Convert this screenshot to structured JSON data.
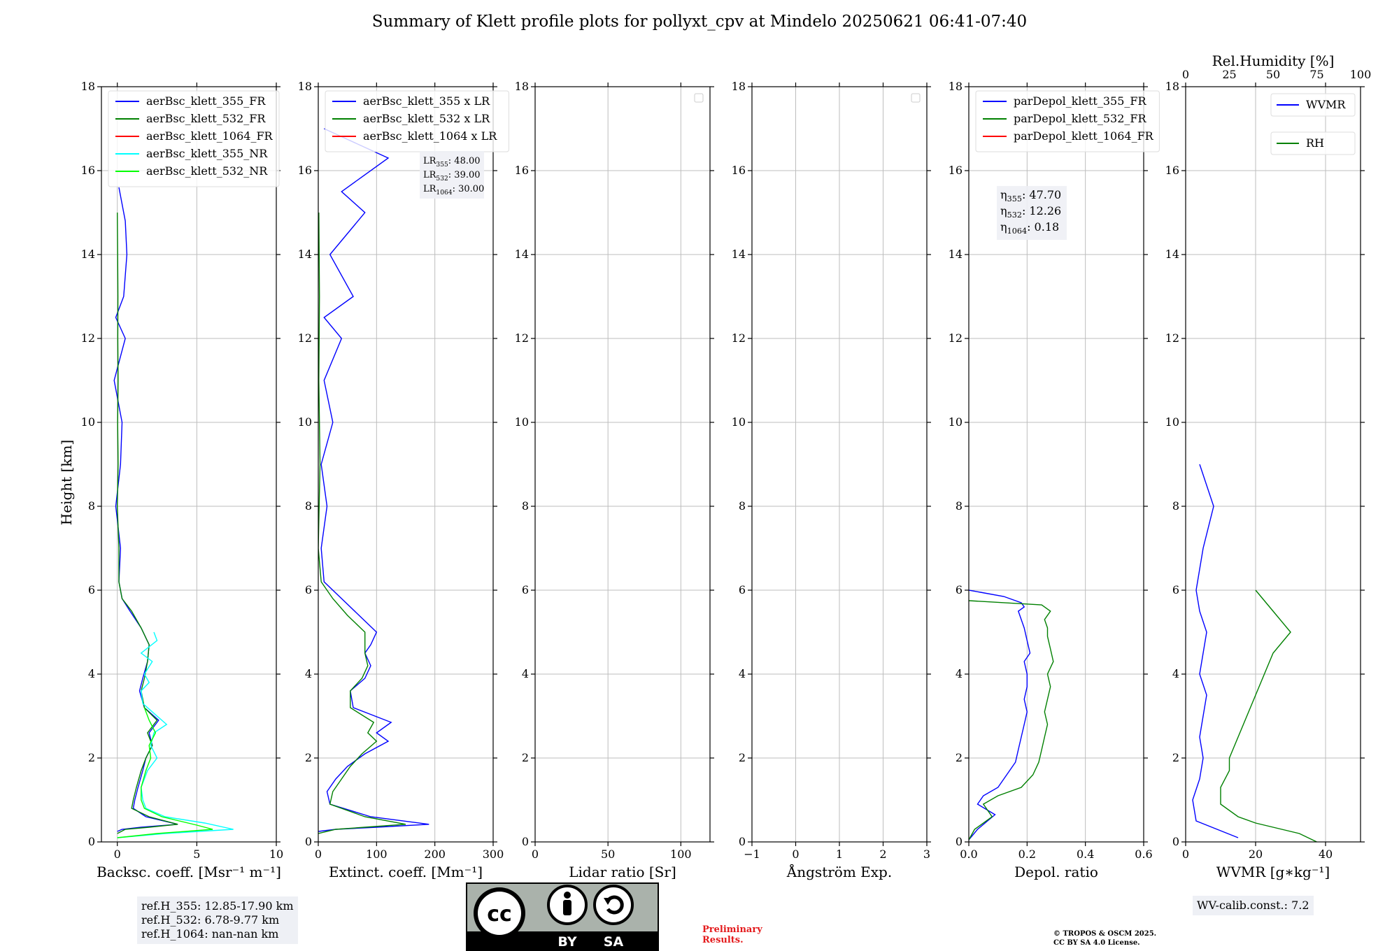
{
  "title": "Summary of Klett profile plots for pollyxt_cpv at Mindelo 20250621 06:41-07:40",
  "ylabel": "Height [km]",
  "ref_lines": [
    "ref.H_355: 12.85-17.90 km",
    "ref.H_532: 6.78-9.77 km",
    "ref.H_1064: nan-nan km"
  ],
  "wv_calib": "WV-calib.const.: 7.2",
  "preliminary": [
    "Preliminary",
    "Results."
  ],
  "copyright": [
    "© TROPOS & OSCM 2025.",
    "CC BY SA 4.0 License."
  ],
  "cc_badge": {
    "by": "BY",
    "sa": "SA"
  },
  "colors": {
    "b355": "#0000ff",
    "g532": "#008000",
    "r1064": "#ff0000",
    "c355nr": "#00ffff",
    "g532nr": "#00ff00"
  },
  "chart_data": [
    {
      "type": "line",
      "xlabel": "Backsc. coeff. [Msr$^{-1}$ m$^{-1}$]",
      "xlabel_display": "Backsc. coeff. [Msr⁻¹ m⁻¹]",
      "ylabel": "Height [km]",
      "xlim": [
        -1,
        10
      ],
      "ylim": [
        0,
        18
      ],
      "xticks": [
        0,
        5,
        10
      ],
      "yticks": [
        0,
        2,
        4,
        6,
        8,
        10,
        12,
        14,
        16,
        18
      ],
      "grid": true,
      "legend": "upper-left",
      "series": [
        {
          "name": "aerBsc_klett_355_FR",
          "color": "#0000ff",
          "x": [
            0,
            0.3,
            1.5,
            3.8,
            1.8,
            1.0,
            1.1,
            1.3,
            1.6,
            1.8,
            2.2,
            2.0,
            2.6,
            1.7,
            1.4,
            1.6,
            1.9,
            2.0,
            1.5,
            0.8,
            0.3,
            0.1,
            0.2,
            -0.1,
            0.2,
            0.3,
            -0.2,
            0.5,
            -0.1,
            0.4,
            0.6,
            0.5,
            0.1
          ],
          "y": [
            0.25,
            0.3,
            0.35,
            0.42,
            0.6,
            0.8,
            1.0,
            1.3,
            1.7,
            2.0,
            2.3,
            2.6,
            2.9,
            3.2,
            3.6,
            3.9,
            4.3,
            4.7,
            5.1,
            5.5,
            5.8,
            6.2,
            7,
            8,
            9,
            10,
            11,
            12,
            12.5,
            13,
            14,
            14.8,
            15.6
          ]
        },
        {
          "name": "aerBsc_klett_532_FR",
          "color": "#008000",
          "x": [
            0,
            0.5,
            2.0,
            3.8,
            2.0,
            0.9,
            1.0,
            1.2,
            1.5,
            1.8,
            2.2,
            1.9,
            2.5,
            1.7,
            1.5,
            1.7,
            1.9,
            2.0,
            1.5,
            0.9,
            0.3,
            0.1,
            0.1,
            0,
            0.05,
            0.02,
            0.05,
            0.03,
            0.04,
            0.02,
            0.0
          ],
          "y": [
            0.2,
            0.3,
            0.35,
            0.42,
            0.6,
            0.8,
            1.0,
            1.3,
            1.7,
            2.0,
            2.3,
            2.6,
            2.9,
            3.2,
            3.6,
            3.9,
            4.3,
            4.7,
            5.1,
            5.5,
            5.8,
            6.2,
            7,
            8,
            9,
            10,
            11,
            12,
            13,
            14,
            15
          ]
        },
        {
          "name": "aerBsc_klett_1064_FR",
          "color": "#ff0000",
          "x": [],
          "y": []
        },
        {
          "name": "aerBsc_klett_355_NR",
          "color": "#00ffff",
          "x": [
            0,
            3.0,
            7.3,
            5.5,
            3.0,
            1.8,
            1.6,
            1.5,
            1.9,
            2.5,
            2.1,
            2.3,
            3.1,
            2.5,
            1.6,
            1.5,
            2.0,
            1.7,
            2.2,
            1.5,
            2.5,
            2.3
          ],
          "y": [
            0.1,
            0.2,
            0.3,
            0.45,
            0.6,
            0.8,
            1.0,
            1.3,
            1.7,
            2.0,
            2.3,
            2.6,
            2.8,
            3.0,
            3.3,
            3.6,
            3.8,
            4.0,
            4.3,
            4.5,
            4.8,
            5.0
          ]
        },
        {
          "name": "aerBsc_klett_532_NR",
          "color": "#00ff00",
          "x": [
            0,
            2.5,
            6.0,
            5.0,
            2.8,
            1.7,
            1.5,
            1.5,
            1.8,
            2.1,
            2.0,
            2.4,
            2.0,
            1.7
          ],
          "y": [
            0.1,
            0.2,
            0.3,
            0.4,
            0.6,
            0.8,
            1.0,
            1.3,
            1.7,
            2.0,
            2.3,
            2.6,
            2.9,
            3.2
          ]
        }
      ]
    },
    {
      "type": "line",
      "xlabel": "Extinct. coeff. [Mm$^{-1}$]",
      "xlabel_display": "Extinct. coeff. [Mm⁻¹]",
      "xlim": [
        0,
        300
      ],
      "ylim": [
        0,
        18
      ],
      "xticks": [
        0,
        100,
        200,
        300
      ],
      "yticks": [
        0,
        2,
        4,
        6,
        8,
        10,
        12,
        14,
        16,
        18
      ],
      "grid": true,
      "legend": "upper-left",
      "annotation": [
        "LR355: 48.00",
        "LR532: 39.00",
        "LR1064: 30.00"
      ],
      "series": [
        {
          "name": "aerBsc_klett_355 x LR",
          "color": "#0000ff",
          "x": [
            0,
            30,
            100,
            190,
            90,
            20,
            15,
            30,
            50,
            80,
            120,
            100,
            125,
            60,
            55,
            80,
            90,
            80,
            90,
            100,
            70,
            40,
            10,
            5,
            15,
            5,
            25,
            10,
            40,
            10,
            60,
            20,
            80,
            40,
            120,
            10
          ],
          "y": [
            0.25,
            0.3,
            0.35,
            0.42,
            0.6,
            0.9,
            1.2,
            1.5,
            1.8,
            2.1,
            2.4,
            2.6,
            2.85,
            3.2,
            3.6,
            3.9,
            4.2,
            4.5,
            4.7,
            5.0,
            5.4,
            5.8,
            6.2,
            7,
            8,
            9,
            10,
            11,
            12,
            12.5,
            13,
            14,
            15,
            15.5,
            16.3,
            17
          ]
        },
        {
          "name": "aerBsc_klett_532 x LR",
          "color": "#008000",
          "x": [
            0,
            30,
            80,
            150,
            80,
            20,
            25,
            40,
            55,
            75,
            100,
            85,
            95,
            55,
            55,
            75,
            85,
            80,
            80,
            80,
            50,
            25,
            5,
            0,
            3,
            1,
            2,
            1
          ],
          "y": [
            0.2,
            0.3,
            0.35,
            0.42,
            0.6,
            0.9,
            1.2,
            1.5,
            1.8,
            2.1,
            2.4,
            2.6,
            2.85,
            3.2,
            3.6,
            3.9,
            4.2,
            4.5,
            4.7,
            5.0,
            5.4,
            5.8,
            6.2,
            7,
            9,
            11,
            13,
            15
          ]
        },
        {
          "name": "aerBsc_klett_1064 x LR",
          "color": "#ff0000",
          "x": [],
          "y": []
        }
      ]
    },
    {
      "type": "line",
      "xlabel": "Lidar ratio [Sr]",
      "xlabel_display": "Lidar ratio [Sr]",
      "xlim": [
        0,
        120
      ],
      "ylim": [
        0,
        18
      ],
      "xticks": [
        0,
        50,
        100
      ],
      "yticks": [
        0,
        2,
        4,
        6,
        8,
        10,
        12,
        14,
        16,
        18
      ],
      "grid": true,
      "legend": "upper-right",
      "series": []
    },
    {
      "type": "line",
      "xlabel": "Ångström Exp.",
      "xlabel_display": "Ångström Exp.",
      "xlim": [
        -1,
        3
      ],
      "ylim": [
        0,
        18
      ],
      "xticks": [
        -1,
        0,
        1,
        2,
        3
      ],
      "yticks": [
        0,
        2,
        4,
        6,
        8,
        10,
        12,
        14,
        16,
        18
      ],
      "grid": true,
      "legend": "upper-right",
      "series": []
    },
    {
      "type": "line",
      "xlabel": "Depol. ratio",
      "xlabel_display": "Depol. ratio",
      "xlim": [
        0,
        0.6
      ],
      "ylim": [
        0,
        18
      ],
      "xticks": [
        0.0,
        0.2,
        0.4,
        0.6
      ],
      "yticks": [
        0,
        2,
        4,
        6,
        8,
        10,
        12,
        14,
        16,
        18
      ],
      "grid": true,
      "legend": "upper-left",
      "annotation": [
        "η355: 47.70",
        "η532: 12.26",
        "η1064: 0.18"
      ],
      "series": [
        {
          "name": "parDepol_klett_355_FR",
          "color": "#0000ff",
          "x": [
            0,
            0.03,
            0.09,
            0.03,
            0.05,
            0.1,
            0.13,
            0.16,
            0.17,
            0.18,
            0.19,
            0.2,
            0.19,
            0.2,
            0.2,
            0.19,
            0.21,
            0.2,
            0.19,
            0.18,
            0.17,
            0.19,
            0.18,
            0.12,
            0.04,
            0.0
          ],
          "y": [
            0.05,
            0.3,
            0.65,
            0.9,
            1.1,
            1.3,
            1.6,
            1.9,
            2.2,
            2.5,
            2.8,
            3.1,
            3.4,
            3.7,
            4.0,
            4.3,
            4.5,
            4.8,
            5.1,
            5.3,
            5.5,
            5.6,
            5.7,
            5.85,
            5.95,
            6.0
          ]
        },
        {
          "name": "parDepol_klett_532_FR",
          "color": "#008000",
          "x": [
            0,
            0.02,
            0.08,
            0.05,
            0.1,
            0.18,
            0.22,
            0.24,
            0.25,
            0.26,
            0.27,
            0.26,
            0.27,
            0.28,
            0.27,
            0.29,
            0.28,
            0.27,
            0.27,
            0.26,
            0.28,
            0.25,
            0.0
          ],
          "y": [
            0.05,
            0.3,
            0.6,
            0.9,
            1.1,
            1.3,
            1.6,
            1.9,
            2.2,
            2.5,
            2.8,
            3.1,
            3.4,
            3.7,
            4.0,
            4.3,
            4.6,
            4.9,
            5.1,
            5.3,
            5.5,
            5.65,
            5.75
          ]
        },
        {
          "name": "parDepol_klett_1064_FR",
          "color": "#ff0000",
          "x": [],
          "y": []
        }
      ]
    },
    {
      "type": "line",
      "xlabel": "WVMR [$g*kg^{-1}$]",
      "xlabel_display": "WVMR [g∗kg⁻¹]",
      "x2label": "Rel.Humidity [%]",
      "xlim": [
        0,
        50
      ],
      "ylim": [
        0,
        18
      ],
      "xticks": [
        0,
        20,
        40
      ],
      "x2lim": [
        0,
        100
      ],
      "x2ticks": [
        0,
        25,
        50,
        75,
        100
      ],
      "yticks": [
        0,
        2,
        4,
        6,
        8,
        10,
        12,
        14,
        16,
        18
      ],
      "grid": true,
      "legend": "upper-right",
      "series": [
        {
          "name": "WVMR",
          "color": "#0000ff",
          "x": [
            15,
            3,
            2,
            4,
            5,
            4,
            5,
            6,
            4,
            5,
            6,
            4,
            3,
            5,
            8,
            4
          ],
          "y": [
            0.1,
            0.5,
            1.0,
            1.5,
            2.0,
            2.5,
            3.0,
            3.5,
            4.0,
            4.5,
            5.0,
            5.5,
            6.0,
            7.0,
            8.0,
            9.0
          ]
        },
        {
          "name": "RH",
          "color": "#008000",
          "x": [
            75,
            65,
            40,
            30,
            20,
            20,
            25,
            25,
            30,
            35,
            40,
            45,
            50,
            60,
            50,
            40
          ],
          "y": [
            0.0,
            0.2,
            0.45,
            0.6,
            0.9,
            1.3,
            1.7,
            2.0,
            2.5,
            3.0,
            3.5,
            4.0,
            4.5,
            5.0,
            5.5,
            6.0
          ]
        }
      ]
    }
  ]
}
